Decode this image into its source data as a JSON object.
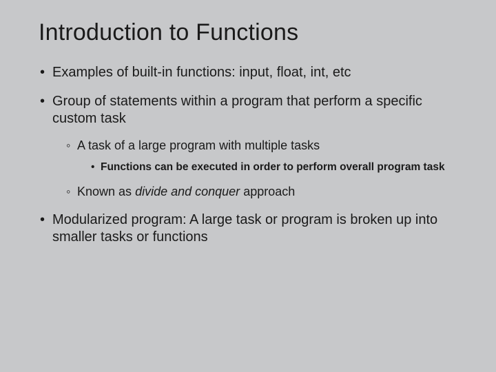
{
  "background_color": "#c7c8ca",
  "text_color": "#1a1a1a",
  "title": "Introduction to Functions",
  "title_fontsize": 34,
  "body_fontsize": 20,
  "level2_fontsize": 18,
  "level3_fontsize": 15.5,
  "bullets": {
    "b1": "Examples of built-in functions: input, float, int, etc",
    "b2": "Group of statements within a program that perform a specific custom task",
    "b2_sub1": "A task of a large program with multiple tasks",
    "b2_sub1_sub1": "Functions can be executed in order to perform overall program task",
    "b2_sub2_prefix": "Known as ",
    "b2_sub2_italic": "divide and conquer",
    "b2_sub2_suffix": " approach",
    "b3": "Modularized program: A large task or program is broken up into smaller tasks or functions"
  }
}
